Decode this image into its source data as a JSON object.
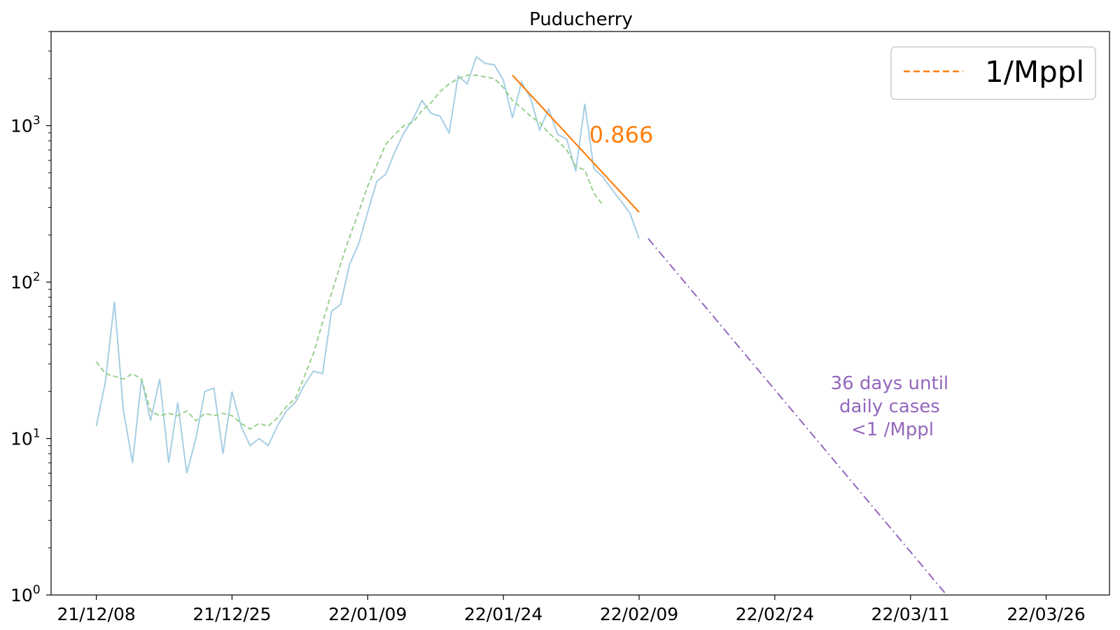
{
  "chart_data": {
    "type": "line",
    "title": "Puducherry",
    "x_scale": "date",
    "y_scale": "log",
    "ylim": [
      1,
      4000
    ],
    "xlim": [
      "2021-12-03",
      "2022-03-30"
    ],
    "x_ticks": [
      {
        "date": "2021-12-08",
        "label": "21/12/08"
      },
      {
        "date": "2021-12-23",
        "label": "21/12/25"
      },
      {
        "date": "2022-01-07",
        "label": "22/01/09"
      },
      {
        "date": "2022-01-22",
        "label": "22/01/24"
      },
      {
        "date": "2022-02-06",
        "label": "22/02/09"
      },
      {
        "date": "2022-02-21",
        "label": "22/02/24"
      },
      {
        "date": "2022-03-08",
        "label": "22/03/11"
      },
      {
        "date": "2022-03-23",
        "label": "22/03/26"
      }
    ],
    "y_ticks": [
      {
        "value": 1,
        "base": "10",
        "exp": "0"
      },
      {
        "value": 10,
        "base": "10",
        "exp": "1"
      },
      {
        "value": 100,
        "base": "10",
        "exp": "2"
      },
      {
        "value": 1000,
        "base": "10",
        "exp": "3"
      }
    ],
    "series": [
      {
        "style": "daily",
        "color": "#a6cee3",
        "start_date": "2021-12-08",
        "values": [
          12,
          23,
          75,
          15,
          7,
          24,
          13,
          24,
          7,
          17,
          6,
          10,
          20,
          21,
          8,
          20,
          12,
          9,
          10,
          9,
          12,
          15,
          17,
          22,
          27,
          26,
          65,
          72,
          130,
          175,
          280,
          440,
          490,
          680,
          900,
          1100,
          1450,
          1200,
          1150,
          900,
          2080,
          1850,
          2750,
          2500,
          2450,
          1950,
          1120,
          1900,
          1500,
          940,
          1280,
          880,
          820,
          510,
          1380,
          530,
          470,
          390,
          330,
          275,
          190
        ]
      },
      {
        "style": "average",
        "color": "#98d08c",
        "start_date": "2021-12-08",
        "values": [
          31,
          26,
          25,
          24,
          26,
          24,
          15,
          14,
          14.5,
          14,
          15,
          13,
          14.5,
          14,
          14.5,
          14,
          12.5,
          11.5,
          12.5,
          12,
          13.5,
          16,
          18,
          25,
          35,
          55,
          85,
          130,
          195,
          280,
          410,
          560,
          760,
          880,
          1000,
          1050,
          1250,
          1400,
          1650,
          1850,
          2000,
          2100,
          2100,
          2050,
          2000,
          1750,
          1450,
          1300,
          1150,
          1050,
          900,
          800,
          700,
          550,
          520,
          370,
          310
        ]
      },
      {
        "style": "fit",
        "name": "1/Mppl",
        "color": "#ff7f0e",
        "from": {
          "date": "2022-01-23",
          "value": 2100
        },
        "to": {
          "date": "2022-02-06",
          "value": 280
        },
        "label": "0.866"
      },
      {
        "style": "projection",
        "color": "#9467bd",
        "from": {
          "date": "2022-02-07",
          "value": 190
        },
        "to": {
          "date": "2022-03-12",
          "value": 1
        }
      }
    ],
    "annotation": {
      "lines": [
        "36 days until",
        "daily cases",
        "<1 /Mppl"
      ]
    },
    "legend": {
      "position": "top-right",
      "entries": [
        {
          "label": "1/Mppl",
          "color": "#ff7f0e",
          "style": "dashed"
        }
      ]
    },
    "grid": false
  }
}
